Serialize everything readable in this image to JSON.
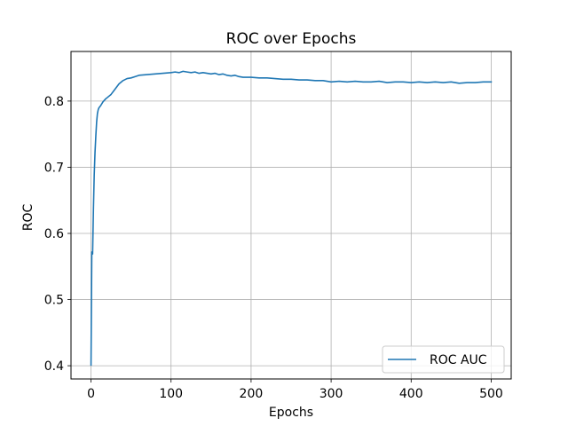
{
  "chart_data": {
    "type": "line",
    "title": "ROC over Epochs",
    "xlabel": "Epochs",
    "ylabel": "ROC",
    "xlim": [
      -25,
      525
    ],
    "ylim": [
      0.38,
      0.875
    ],
    "xticks": [
      0,
      100,
      200,
      300,
      400,
      500
    ],
    "yticks": [
      0.4,
      0.5,
      0.6,
      0.7,
      0.8
    ],
    "ytick_labels": [
      "0.4",
      "0.5",
      "0.6",
      "0.7",
      "0.8"
    ],
    "grid": true,
    "legend_position": "lower right",
    "series": [
      {
        "name": "ROC AUC",
        "color": "#1f77b4",
        "x": [
          0,
          1,
          2,
          3,
          4,
          5,
          6,
          7,
          8,
          9,
          10,
          12,
          15,
          18,
          20,
          25,
          30,
          35,
          40,
          45,
          50,
          55,
          60,
          70,
          80,
          90,
          100,
          105,
          110,
          115,
          120,
          125,
          130,
          135,
          140,
          145,
          150,
          155,
          160,
          165,
          170,
          175,
          180,
          185,
          190,
          200,
          210,
          220,
          230,
          240,
          250,
          260,
          270,
          280,
          290,
          300,
          310,
          320,
          330,
          340,
          350,
          360,
          370,
          380,
          390,
          400,
          410,
          420,
          430,
          440,
          450,
          460,
          470,
          480,
          490,
          500
        ],
        "y": [
          0.401,
          0.572,
          0.569,
          0.635,
          0.688,
          0.722,
          0.747,
          0.768,
          0.781,
          0.787,
          0.79,
          0.793,
          0.799,
          0.803,
          0.805,
          0.81,
          0.818,
          0.826,
          0.831,
          0.834,
          0.835,
          0.837,
          0.839,
          0.84,
          0.841,
          0.842,
          0.843,
          0.844,
          0.843,
          0.845,
          0.844,
          0.843,
          0.844,
          0.842,
          0.843,
          0.842,
          0.841,
          0.842,
          0.84,
          0.841,
          0.839,
          0.838,
          0.839,
          0.837,
          0.836,
          0.836,
          0.835,
          0.835,
          0.834,
          0.833,
          0.833,
          0.832,
          0.832,
          0.831,
          0.831,
          0.829,
          0.83,
          0.829,
          0.83,
          0.829,
          0.829,
          0.83,
          0.828,
          0.829,
          0.829,
          0.828,
          0.829,
          0.828,
          0.829,
          0.828,
          0.829,
          0.827,
          0.828,
          0.828,
          0.829,
          0.829
        ]
      }
    ]
  }
}
